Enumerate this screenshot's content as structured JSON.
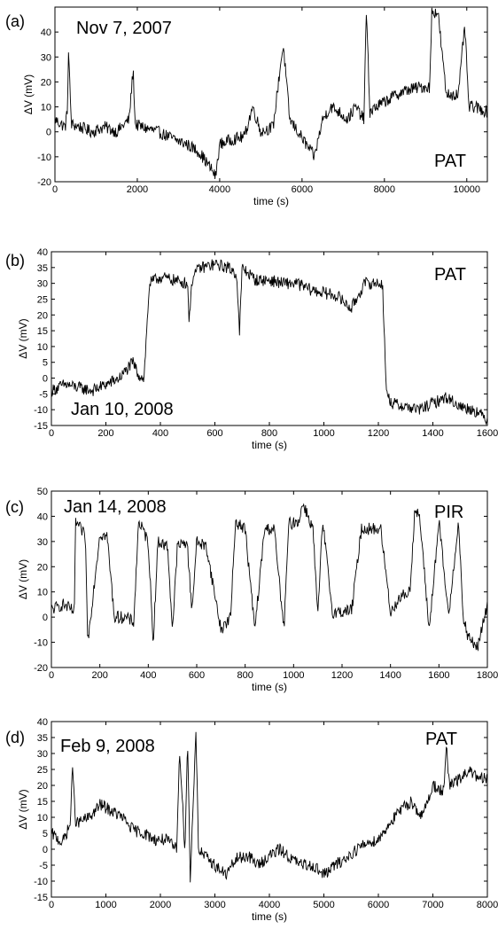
{
  "figure": {
    "type": "multi-panel time series",
    "panels": 4
  },
  "chart_data": [
    {
      "type": "line",
      "panel_label": "(a)",
      "date_text": "Nov 7, 2007",
      "tag_text": "PAT",
      "xlabel": "time (s)",
      "ylabel": "ΔV (mV)",
      "xlim": [
        0,
        10500
      ],
      "ylim": [
        -20,
        50
      ],
      "xticks": [
        0,
        2000,
        4000,
        6000,
        8000,
        10000
      ],
      "yticks": [
        -20,
        -10,
        0,
        10,
        20,
        30,
        40
      ],
      "grid": false,
      "series": [
        {
          "x": [
            0,
            150,
            250,
            300,
            330,
            400,
            600,
            900,
            1200,
            1500,
            1800,
            1900,
            1950,
            2100,
            2500,
            2900,
            3200,
            3500,
            3800,
            3900,
            4000,
            4300,
            4600,
            4800,
            5000,
            5300,
            5500,
            5550,
            5700,
            5900,
            6100,
            6300,
            6500,
            6700,
            6900,
            7100,
            7300,
            7500,
            7560,
            7650,
            7800,
            8000,
            8300,
            8600,
            8900,
            9100,
            9150,
            9300,
            9500,
            9800,
            9950,
            10050,
            10200,
            10500
          ],
          "y": [
            5,
            3,
            2,
            8,
            32,
            3,
            2,
            0,
            2,
            0,
            5,
            25,
            3,
            2,
            0,
            -3,
            -5,
            -8,
            -15,
            -18,
            -5,
            -3,
            -2,
            10,
            0,
            2,
            30,
            34,
            5,
            0,
            -5,
            -10,
            5,
            10,
            8,
            5,
            10,
            5,
            48,
            8,
            10,
            12,
            15,
            17,
            18,
            18,
            48,
            48,
            15,
            15,
            43,
            10,
            10,
            8
          ]
        }
      ]
    },
    {
      "type": "line",
      "panel_label": "(b)",
      "date_text": "Jan 10, 2008",
      "tag_text": "PAT",
      "xlabel": "time (s)",
      "ylabel": "ΔV (mV)",
      "xlim": [
        0,
        1600
      ],
      "ylim": [
        -15,
        40
      ],
      "xticks": [
        0,
        200,
        400,
        600,
        800,
        1000,
        1200,
        1400,
        1600
      ],
      "yticks": [
        -15,
        -10,
        -5,
        0,
        5,
        10,
        15,
        20,
        25,
        30,
        35,
        40
      ],
      "grid": false,
      "series": [
        {
          "x": [
            0,
            50,
            100,
            150,
            200,
            250,
            300,
            320,
            340,
            360,
            400,
            450,
            500,
            505,
            520,
            550,
            600,
            650,
            680,
            690,
            700,
            750,
            800,
            850,
            900,
            950,
            1000,
            1050,
            1100,
            1150,
            1200,
            1215,
            1230,
            1250,
            1300,
            1350,
            1400,
            1450,
            1500,
            1550,
            1600
          ],
          "y": [
            -4,
            -2,
            -3,
            -4,
            -2,
            0,
            5,
            1,
            0,
            30,
            32,
            31,
            30,
            19,
            33,
            35,
            36,
            35,
            33,
            14,
            35,
            31,
            31,
            30,
            30,
            28,
            27,
            26,
            22,
            30,
            30,
            30,
            -5,
            -8,
            -9,
            -10,
            -8,
            -6,
            -9,
            -10,
            -13
          ]
        }
      ]
    },
    {
      "type": "line",
      "panel_label": "(c)",
      "date_text": "Jan 14, 2008",
      "tag_text": "PIR",
      "xlabel": "time (s)",
      "ylabel": "ΔV (mV)",
      "xlim": [
        0,
        1800
      ],
      "ylim": [
        -20,
        50
      ],
      "xticks": [
        0,
        200,
        400,
        600,
        800,
        1000,
        1200,
        1400,
        1600,
        1800
      ],
      "yticks": [
        -20,
        -10,
        0,
        10,
        20,
        30,
        40,
        50
      ],
      "grid": false,
      "series": [
        {
          "x": [
            0,
            50,
            95,
            100,
            140,
            150,
            200,
            230,
            260,
            300,
            340,
            360,
            400,
            420,
            440,
            480,
            500,
            520,
            560,
            580,
            600,
            640,
            700,
            740,
            760,
            800,
            840,
            880,
            920,
            960,
            980,
            1020,
            1040,
            1080,
            1100,
            1120,
            1160,
            1200,
            1240,
            1280,
            1320,
            1360,
            1400,
            1440,
            1480,
            1500,
            1520,
            1560,
            1600,
            1640,
            1680,
            1700,
            1720,
            1760,
            1800
          ],
          "y": [
            3,
            5,
            2,
            38,
            32,
            -10,
            33,
            32,
            0,
            0,
            -2,
            38,
            30,
            -10,
            30,
            28,
            -5,
            28,
            30,
            3,
            30,
            28,
            -5,
            0,
            38,
            35,
            -5,
            35,
            35,
            -5,
            37,
            38,
            45,
            35,
            0,
            38,
            2,
            2,
            3,
            35,
            35,
            35,
            2,
            8,
            10,
            42,
            40,
            -5,
            38,
            0,
            38,
            0,
            -8,
            -12,
            5
          ]
        }
      ]
    },
    {
      "type": "line",
      "panel_label": "(d)",
      "date_text": "Feb 9, 2008",
      "tag_text": "PAT",
      "xlabel": "time (s)",
      "ylabel": "ΔV (mV)",
      "xlim": [
        0,
        8000
      ],
      "ylim": [
        -15,
        40
      ],
      "xticks": [
        0,
        1000,
        2000,
        3000,
        4000,
        5000,
        6000,
        7000,
        8000
      ],
      "yticks": [
        -15,
        -10,
        -5,
        0,
        5,
        10,
        15,
        20,
        25,
        30,
        35,
        40
      ],
      "grid": false,
      "series": [
        {
          "x": [
            0,
            200,
            350,
            380,
            450,
            700,
            900,
            1100,
            1300,
            1500,
            1700,
            1900,
            2100,
            2300,
            2350,
            2450,
            2500,
            2550,
            2650,
            2700,
            2800,
            3000,
            3200,
            3400,
            3600,
            3800,
            4000,
            4200,
            4400,
            4600,
            4800,
            5000,
            5200,
            5400,
            5600,
            5800,
            6000,
            6200,
            6400,
            6600,
            6800,
            7000,
            7200,
            7250,
            7300,
            7500,
            7700,
            7800,
            8000
          ],
          "y": [
            5,
            2,
            8,
            26,
            8,
            10,
            14,
            12,
            10,
            6,
            5,
            3,
            3,
            0,
            32,
            0,
            34,
            -10,
            38,
            0,
            -2,
            -5,
            -8,
            -3,
            -2,
            -5,
            -2,
            0,
            -3,
            -5,
            -5,
            -8,
            -5,
            -3,
            0,
            2,
            3,
            8,
            12,
            15,
            10,
            20,
            18,
            32,
            20,
            22,
            25,
            22,
            22
          ]
        }
      ]
    }
  ]
}
